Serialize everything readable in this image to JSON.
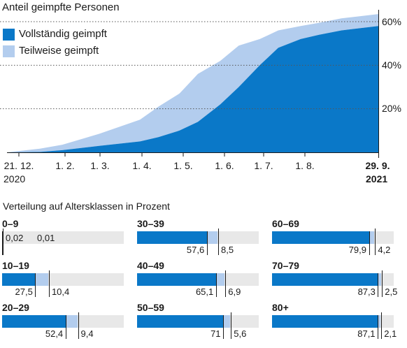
{
  "colors": {
    "full": "#0a78c8",
    "partial": "#b3cdee",
    "track": "#e8e8e8",
    "grid": "#555555"
  },
  "chart_data": [
    {
      "type": "area",
      "title": "Anteil geimpfte Personen",
      "legend": [
        "Vollständig geimpft",
        "Teilweise geimpft"
      ],
      "legend_position": "top-left",
      "y_ticks": [
        "20%",
        "40%",
        "60%"
      ],
      "ylim": [
        0,
        60
      ],
      "x_ticks": [
        "21. 12.",
        "1. 2.",
        "1. 3.",
        "1. 4.",
        "1. 5.",
        "1. 6.",
        "1. 7.",
        "1. 8.",
        "29. 9."
      ],
      "x_start_year": "2020",
      "x_end_year": "2021",
      "series": [
        {
          "name": "Vollständig geimpft",
          "x": [
            "2020-12-21",
            "2021-01-15",
            "2021-02-01",
            "2021-03-01",
            "2021-04-01",
            "2021-04-15",
            "2021-05-01",
            "2021-05-15",
            "2021-06-01",
            "2021-06-15",
            "2021-07-01",
            "2021-07-15",
            "2021-08-01",
            "2021-08-15",
            "2021-09-01",
            "2021-09-29"
          ],
          "values": [
            0,
            0.2,
            1,
            3,
            5,
            7,
            10,
            14,
            22,
            30,
            40,
            48,
            52,
            54,
            56,
            58
          ]
        },
        {
          "name": "Teilweise geimpft",
          "x": [
            "2020-12-21",
            "2021-01-15",
            "2021-02-01",
            "2021-03-01",
            "2021-04-01",
            "2021-04-15",
            "2021-05-01",
            "2021-05-15",
            "2021-06-01",
            "2021-06-15",
            "2021-07-01",
            "2021-07-15",
            "2021-08-01",
            "2021-08-15",
            "2021-09-01",
            "2021-09-29"
          ],
          "values": [
            0,
            1.5,
            2.5,
            5.5,
            10,
            14,
            17,
            22,
            20,
            19,
            12,
            8,
            6,
            5.5,
            5.5,
            5.5
          ]
        }
      ]
    },
    {
      "type": "bar",
      "title": "Verteilung auf Altersklassen in Prozent",
      "stacked": true,
      "xlim": [
        0,
        100
      ],
      "categories": [
        "0–9",
        "10–19",
        "20–29",
        "30–39",
        "40–49",
        "50–59",
        "60–69",
        "70–79",
        "80+"
      ],
      "series": [
        {
          "name": "Vollständig geimpft",
          "values": [
            0.02,
            27.5,
            52.4,
            57.6,
            65.1,
            71,
            79.9,
            87.3,
            87.1
          ],
          "labels": [
            "0,02",
            "27,5",
            "52,4",
            "57,6",
            "65,1",
            "71",
            "79,9",
            "87,3",
            "87,1"
          ]
        },
        {
          "name": "Teilweise geimpft",
          "values": [
            0.01,
            10.4,
            9.4,
            8.5,
            6.9,
            5.6,
            4.2,
            2.5,
            2.1
          ],
          "labels": [
            "0,01",
            "10,4",
            "9,4",
            "8,5",
            "6,9",
            "5,6",
            "4,2",
            "2,5",
            "2,1"
          ]
        }
      ]
    }
  ]
}
